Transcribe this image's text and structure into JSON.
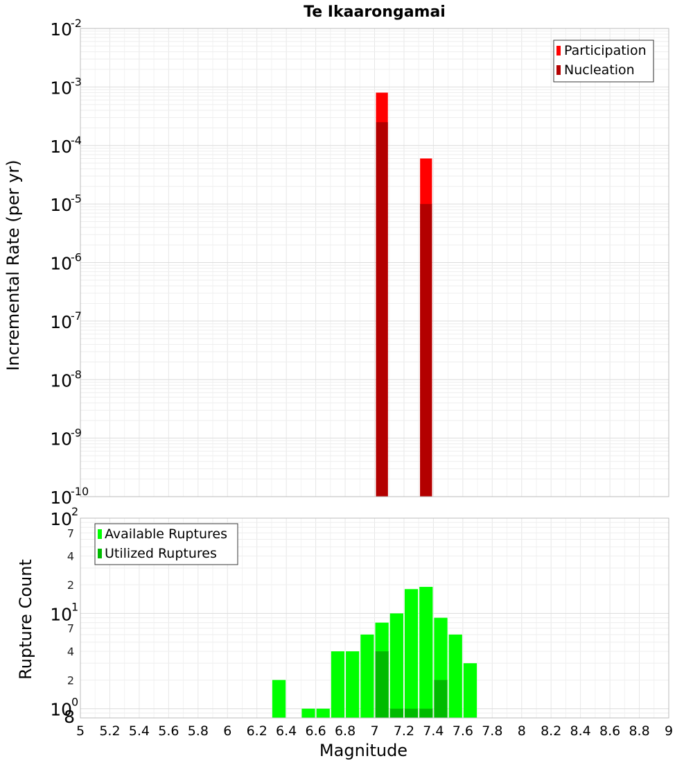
{
  "chart_data": [
    {
      "type": "bar",
      "title": "Te Ikaarongamai",
      "xlabel": "",
      "ylabel": "Incremental Rate (per yr)",
      "yscale": "log",
      "xlim": [
        5,
        9
      ],
      "ylim": [
        1e-10,
        0.01
      ],
      "grid": true,
      "legend_position": "top-right",
      "bin_width": 0.1,
      "series": [
        {
          "name": "Participation",
          "color": "#ff0000",
          "x": [
            7.05,
            7.35
          ],
          "values": [
            0.0008,
            6e-05
          ]
        },
        {
          "name": "Nucleation",
          "color": "#b30000",
          "x": [
            7.05,
            7.35
          ],
          "values": [
            0.00025,
            1e-05
          ]
        }
      ]
    },
    {
      "type": "bar",
      "title": "",
      "xlabel": "Magnitude",
      "ylabel": "Rupture Count",
      "yscale": "log",
      "xlim": [
        5,
        9
      ],
      "ylim": [
        0.8,
        100
      ],
      "grid": true,
      "legend_position": "top-left",
      "bin_width": 0.1,
      "series": [
        {
          "name": "Available Ruptures",
          "color": "#00ff00",
          "x": [
            6.35,
            6.55,
            6.65,
            6.75,
            6.85,
            6.95,
            7.05,
            7.15,
            7.25,
            7.35,
            7.45,
            7.55,
            7.65
          ],
          "values": [
            2,
            1,
            1,
            4,
            4,
            6,
            8,
            10,
            18,
            19,
            9,
            6,
            3
          ]
        },
        {
          "name": "Utilized Ruptures",
          "color": "#00bb00",
          "x": [
            7.05,
            7.15,
            7.25,
            7.35,
            7.45
          ],
          "values": [
            4,
            1,
            1,
            1,
            2
          ]
        }
      ]
    }
  ],
  "axis_ticks": {
    "x": [
      "5",
      "5.2",
      "5.4",
      "5.6",
      "5.8",
      "6",
      "6.2",
      "6.4",
      "6.6",
      "6.8",
      "7",
      "7.2",
      "7.4",
      "7.6",
      "7.8",
      "8",
      "8.2",
      "8.4",
      "8.6",
      "8.8",
      "9"
    ],
    "top_y": [
      {
        "base": "10",
        "exp": "-2"
      },
      {
        "base": "10",
        "exp": "-3"
      },
      {
        "base": "10",
        "exp": "-4"
      },
      {
        "base": "10",
        "exp": "-5"
      },
      {
        "base": "10",
        "exp": "-6"
      },
      {
        "base": "10",
        "exp": "-7"
      },
      {
        "base": "10",
        "exp": "-8"
      },
      {
        "base": "10",
        "exp": "-9"
      },
      {
        "base": "10",
        "exp": "-10"
      }
    ],
    "bottom_y_major": [
      {
        "base": "10",
        "exp": "2"
      },
      {
        "base": "10",
        "exp": "1"
      },
      {
        "base": "10",
        "exp": "0"
      }
    ],
    "bottom_y_minor": [
      "7",
      "4",
      "2",
      "7",
      "4",
      "2",
      "8"
    ]
  }
}
